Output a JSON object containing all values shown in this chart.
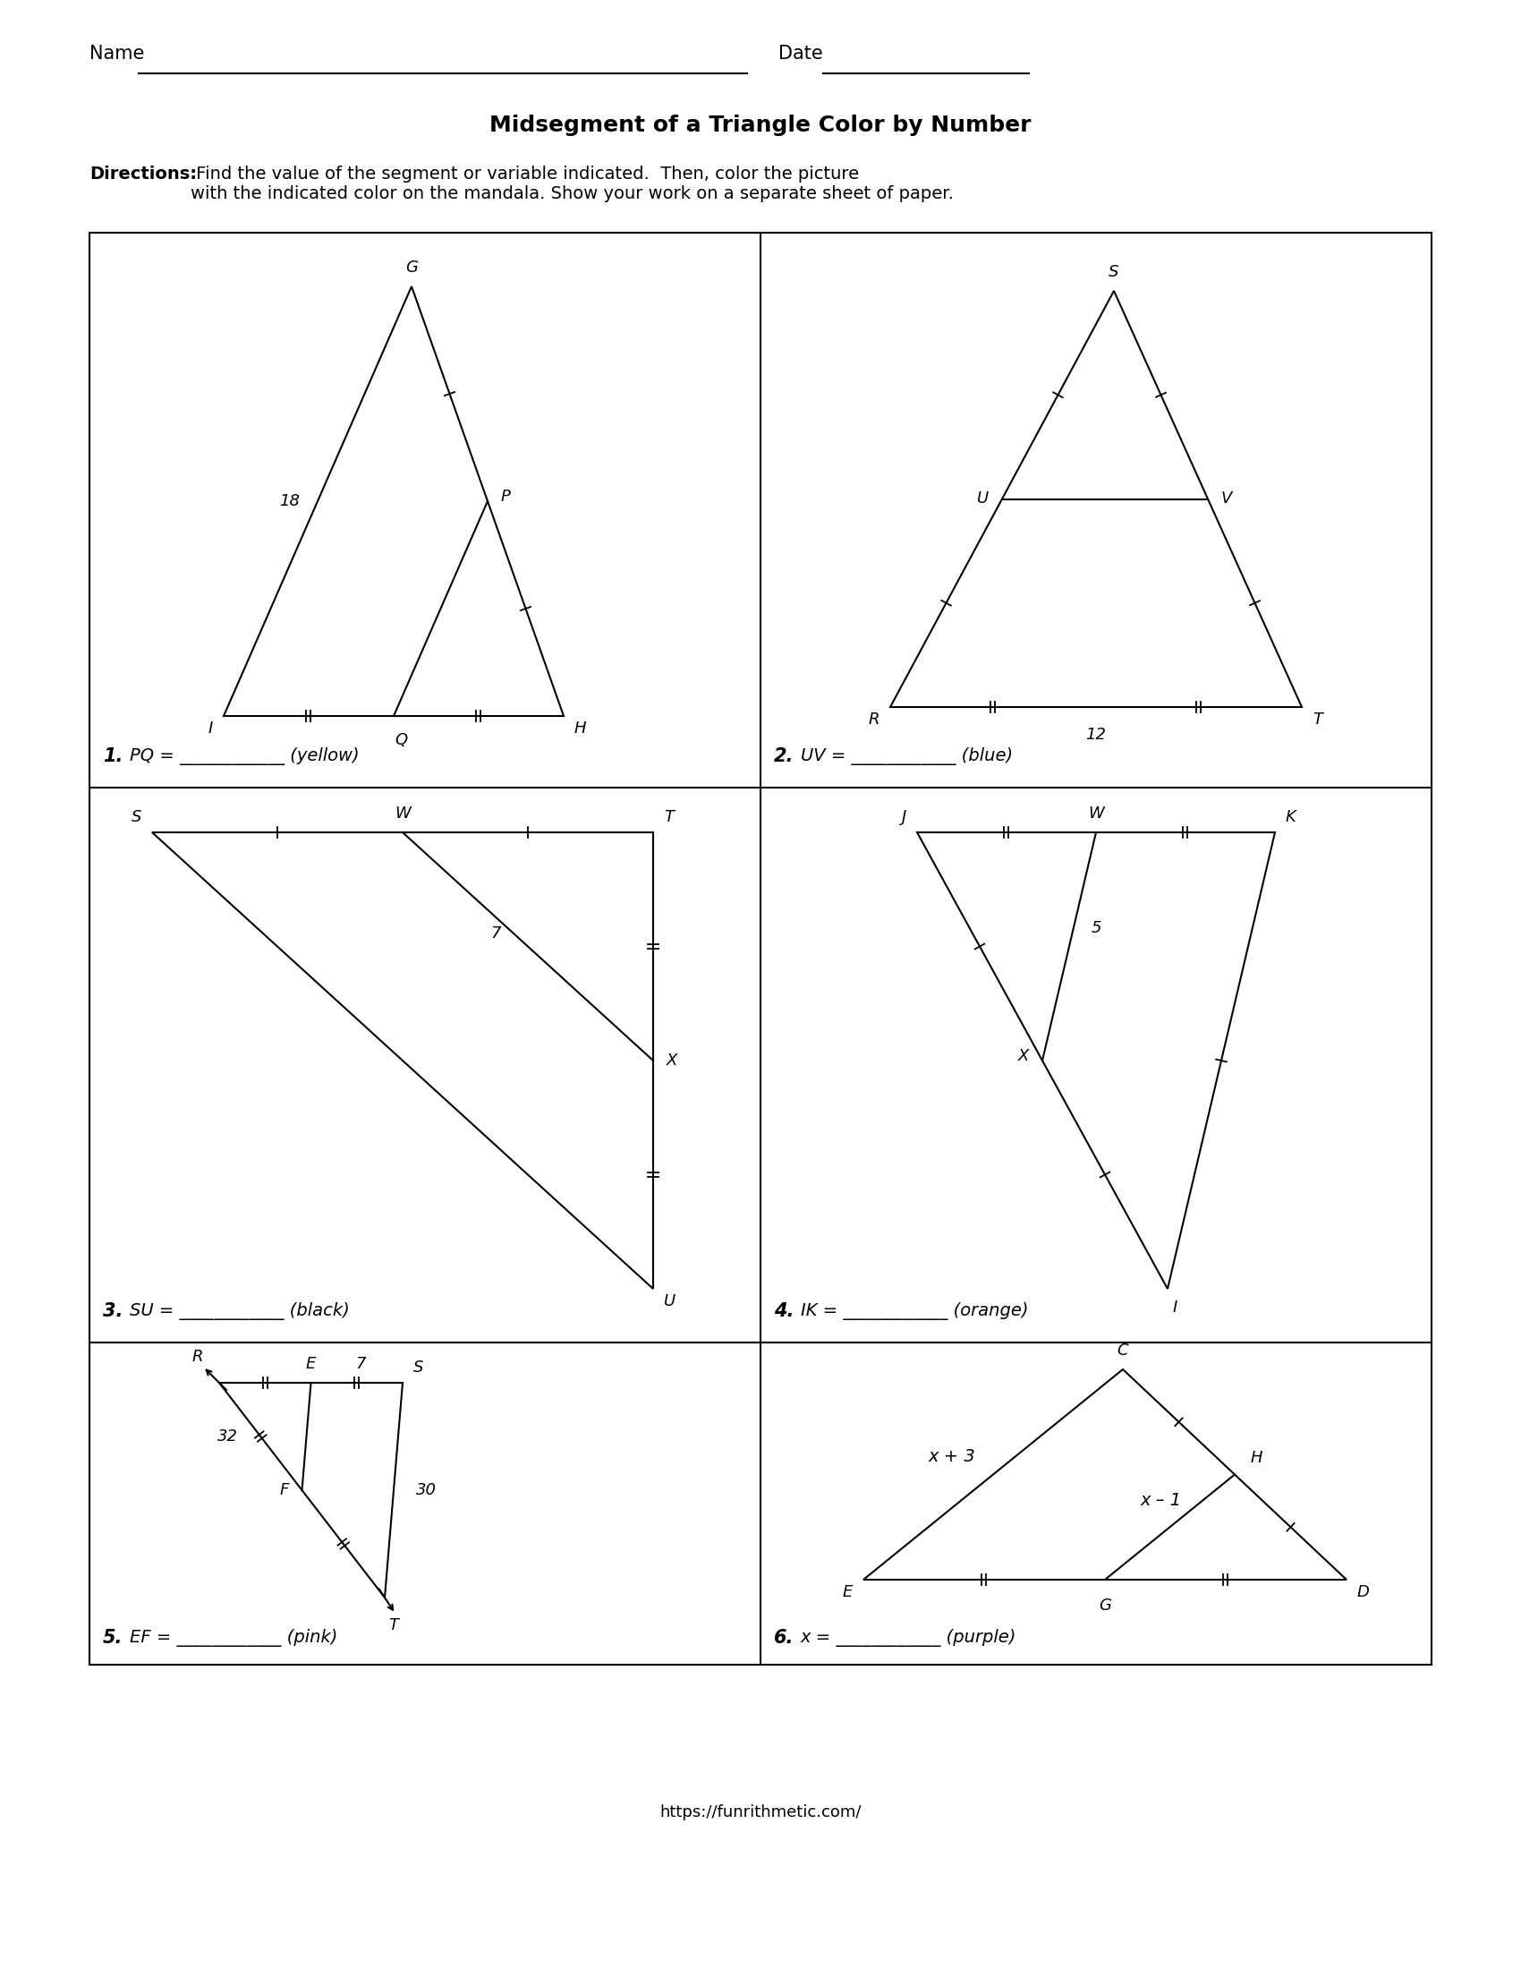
{
  "title": "Midsegment of a Triangle Color by Number",
  "directions_bold": "Directions:",
  "directions_regular": " Find the value of the segment or variable indicated.  Then, color the picture\nwith the indicated color on the mandala. Show your work on a separate sheet of paper.",
  "footer": "https://funrithmetic.com/"
}
